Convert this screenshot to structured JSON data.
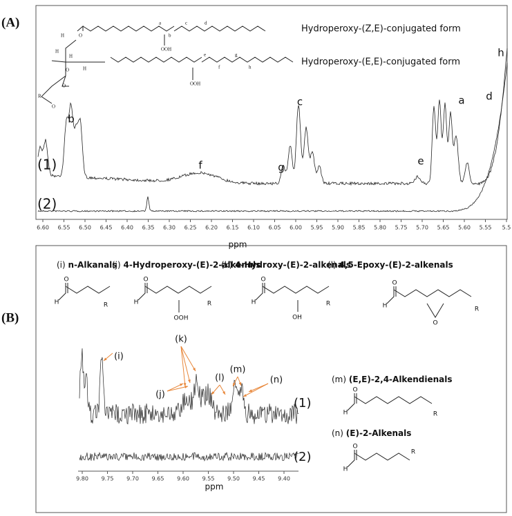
{
  "panel_a": {
    "label": "(A)",
    "forms": [
      {
        "name": "Hydroperoxy-(Z,E)-conjugated form",
        "letters": [
          "a",
          "b",
          "c",
          "d"
        ],
        "group": "OOH"
      },
      {
        "name": "Hydroperoxy-(E,E)-conjugated form",
        "letters": [
          "e",
          "f",
          "g",
          "h"
        ],
        "group": "OOH"
      }
    ],
    "backbone_atoms": [
      "O",
      "H",
      "H",
      "H",
      "O",
      "H",
      "O",
      "R",
      "O"
    ],
    "peaks": [
      "b",
      "f",
      "g",
      "c",
      "e",
      "a",
      "d",
      "h"
    ],
    "traces": [
      "(1)",
      "(2)"
    ],
    "x_ticks": [
      "6.60",
      "6.55",
      "6.50",
      "6.45",
      "6.40",
      "6.35",
      "6.30",
      "6.25",
      "6.20",
      "6.15",
      "6.10",
      "6.05",
      "6.00",
      "5.95",
      "5.90",
      "5.85",
      "5.80",
      "5.75",
      "5.70",
      "5.65",
      "5.60",
      "5.55",
      "5.5"
    ],
    "x_label": "ppm"
  },
  "panel_b": {
    "label": "(B)",
    "compounds": [
      {
        "id": "(i)",
        "name": "n-Alkanals",
        "atoms": [
          "O",
          "H",
          "R"
        ]
      },
      {
        "id": "(j)",
        "name": "4-Hydroperoxy-(E)-2-alkenals",
        "atoms": [
          "O",
          "H",
          "OOH",
          "R"
        ]
      },
      {
        "id": "(k)",
        "name": "4-Hydroxy-(E)-2-alkenals",
        "atoms": [
          "O",
          "H",
          "OH",
          "R"
        ]
      },
      {
        "id": "(l)",
        "name": "4,5-Epoxy-(E)-2-alkenals",
        "atoms": [
          "O",
          "H",
          "O",
          "R"
        ]
      },
      {
        "id": "(m)",
        "name": "(E,E)-2,4-Alkendienals",
        "atoms": [
          "O",
          "H",
          "R"
        ]
      },
      {
        "id": "(n)",
        "name": "(E)-2-Alkenals",
        "atoms": [
          "O",
          "H",
          "R"
        ]
      }
    ],
    "peaks": [
      "(i)",
      "(k)",
      "(j)",
      "(l)",
      "(m)",
      "(n)"
    ],
    "traces": [
      "(1)",
      "(2)"
    ],
    "x_ticks": [
      "9.80",
      "9.75",
      "9.70",
      "9.65",
      "9.60",
      "9.55",
      "9.50",
      "9.45",
      "9.40"
    ],
    "x_label": "ppm"
  }
}
